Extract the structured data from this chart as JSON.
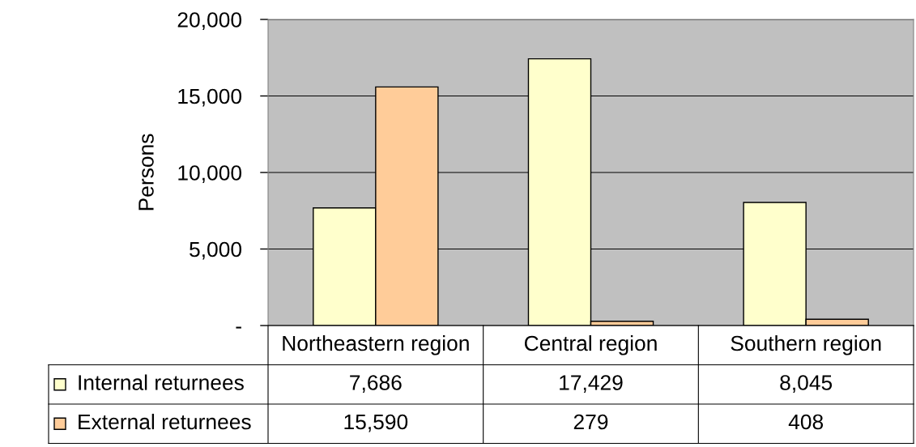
{
  "chart_data": {
    "type": "bar",
    "ylabel": "Persons",
    "categories": [
      "Northeastern region",
      "Central region",
      "Southern region"
    ],
    "series": [
      {
        "name": "Internal returnees",
        "color": "#ffffcc",
        "values": [
          7686,
          17429,
          8045
        ],
        "value_labels": [
          "7,686",
          "17,429",
          "8,045"
        ]
      },
      {
        "name": "External returnees",
        "color": "#ffcc99",
        "values": [
          15590,
          279,
          408
        ],
        "value_labels": [
          "15,590",
          "279",
          "408"
        ]
      }
    ],
    "ylim": [
      0,
      20000
    ],
    "yticks": [
      {
        "value": 0,
        "label": "-"
      },
      {
        "value": 5000,
        "label": "5,000"
      },
      {
        "value": 10000,
        "label": "10,000"
      },
      {
        "value": 15000,
        "label": "15,000"
      },
      {
        "value": 20000,
        "label": "20,000"
      }
    ],
    "grid": "y",
    "legend": "bottom"
  }
}
